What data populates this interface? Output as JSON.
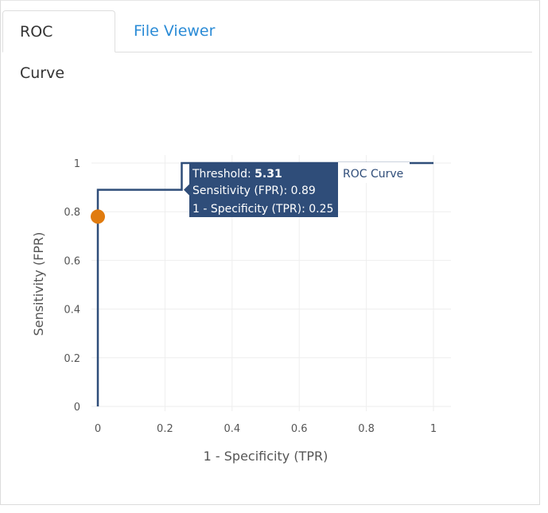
{
  "tabs": [
    {
      "label": "ROC Curve",
      "active": true
    },
    {
      "label": "File Viewer",
      "active": false
    }
  ],
  "chart_data": {
    "type": "line",
    "xlabel": "1 - Specificity (TPR)",
    "ylabel": "Sensitivity (FPR)",
    "xlim": [
      0,
      1
    ],
    "ylim": [
      0,
      1
    ],
    "x_ticks": [
      "0",
      "0.2",
      "0.4",
      "0.6",
      "0.8",
      "1"
    ],
    "y_ticks": [
      "0",
      "0.2",
      "0.4",
      "0.6",
      "0.8",
      "1"
    ],
    "grid": true,
    "series": [
      {
        "name": "ROC Curve",
        "color": "#2f4d79",
        "x": [
          0,
          0,
          0.25,
          0.25,
          1
        ],
        "y": [
          0,
          0.89,
          0.89,
          1,
          1
        ]
      }
    ],
    "highlight_point": {
      "x": 0,
      "y": 0.78,
      "color": "#e07b0f"
    },
    "tooltip": {
      "threshold_label": "Threshold: ",
      "threshold_value": "5.31",
      "sensitivity_line": "Sensitivity (FPR): 0.89",
      "specificity_line": "1 - Specificity (TPR): 0.25",
      "series_label": "ROC Curve",
      "bg_color": "#2f4d79"
    }
  }
}
